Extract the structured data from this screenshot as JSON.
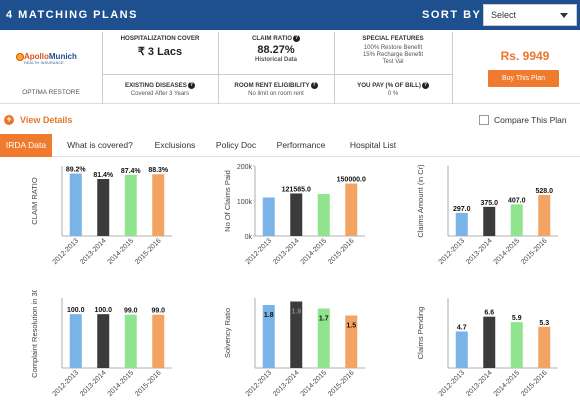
{
  "header": {
    "title": "4 MATCHING PLANS",
    "sort_label": "SORT BY",
    "sort_value": "Select"
  },
  "plan": {
    "logo_brand_1": "Apollo",
    "logo_brand_2": "Munich",
    "logo_sub": "HEALTH INSURANCE",
    "name": "OPTIMA RESTORE",
    "hospitalization_cover_label": "HOSPITALIZATION COVER",
    "hospitalization_cover_value": "₹ 3 Lacs",
    "claim_ratio_label": "CLAIM RATIO",
    "claim_ratio_value": "88.27%",
    "claim_ratio_note": "Historical Data",
    "special_features_label": "SPECIAL FEATURES",
    "special_features": [
      "100% Restore Benefit",
      "15% Recharge Benefit",
      "Test Val"
    ],
    "existing_diseases_label": "EXISTING DISEASES",
    "existing_diseases_value": "Covered After 3 Years",
    "room_rent_label": "ROOM RENT ELIGIBILITY",
    "room_rent_value": "No limit on room rent",
    "you_pay_label": "YOU PAY (% OF BILL)",
    "you_pay_value": "0 %",
    "price": "Rs. 9949",
    "buy_label": "Buy This Plan"
  },
  "details": {
    "view_label": "View Details",
    "compare_label": "Compare This Plan"
  },
  "tabs": [
    "IRDA Data",
    "What is covered?",
    "Exclusions",
    "Policy Doc",
    "Performance",
    "Hospital List"
  ],
  "colors": {
    "blue": "#7ab3e6",
    "dark": "#3b3b3b",
    "green": "#90e48e",
    "orange": "#f4a462",
    "accent": "#f07a2e",
    "header": "#1e4f8e"
  },
  "chart_data": [
    {
      "type": "bar",
      "ylabel": "CLAIM RATIO",
      "categories": [
        "2012-2013",
        "2013-2014",
        "2014-2015",
        "2015-2016"
      ],
      "values": [
        89.2,
        81.4,
        87.4,
        88.3
      ],
      "labels": [
        "89.2%",
        "81.4%",
        "87.4%",
        "88.3%"
      ],
      "ylim": [
        0,
        100
      ],
      "ticks": []
    },
    {
      "type": "bar",
      "ylabel": "No Of Claims Paid",
      "categories": [
        "2012-2013",
        "2013-2014",
        "2014-2015",
        "2015-2016"
      ],
      "values": [
        110000,
        121585,
        120000,
        150000
      ],
      "labels": [
        "",
        "121585.0",
        "",
        "150000.0"
      ],
      "ylim": [
        0,
        200000
      ],
      "ticks": [
        "0k",
        "100k",
        "200k"
      ]
    },
    {
      "type": "bar",
      "ylabel": "Claims Amount (in Cr)",
      "categories": [
        "2012-2013",
        "2013-2014",
        "2014-2015",
        "2015-2016"
      ],
      "values": [
        297.0,
        375.0,
        407.0,
        528.0
      ],
      "labels": [
        "297.0",
        "375.0",
        "407.0",
        "528.0"
      ],
      "ylim": [
        0,
        900
      ],
      "ticks": []
    },
    {
      "type": "bar",
      "ylabel": "Complaint Resolution in 30",
      "categories": [
        "2012-2013",
        "2013-2014",
        "2014-2015",
        "2015-2016"
      ],
      "values": [
        100.0,
        100.0,
        99.0,
        99.0
      ],
      "labels": [
        "100.0",
        "100.0",
        "99.0",
        "99.0"
      ],
      "ylim": [
        0,
        130
      ],
      "ticks": []
    },
    {
      "type": "bar",
      "ylabel": "Solvency Ratio",
      "categories": [
        "2012-2013",
        "2013-2014",
        "2014-2015",
        "2015-2016"
      ],
      "values": [
        1.8,
        1.9,
        1.7,
        1.5
      ],
      "labels": [
        "1.8",
        "1.9",
        "1.7",
        "1.5"
      ],
      "ylim": [
        0,
        2.0
      ],
      "ticks": []
    },
    {
      "type": "bar",
      "ylabel": "Claims Pending",
      "categories": [
        "2012-2013",
        "2013-2014",
        "2014-2015",
        "2015-2016"
      ],
      "values": [
        4.7,
        6.6,
        5.9,
        5.3
      ],
      "labels": [
        "4.7",
        "6.6",
        "5.9",
        "5.3"
      ],
      "ylim": [
        0,
        9
      ],
      "ticks": []
    }
  ]
}
